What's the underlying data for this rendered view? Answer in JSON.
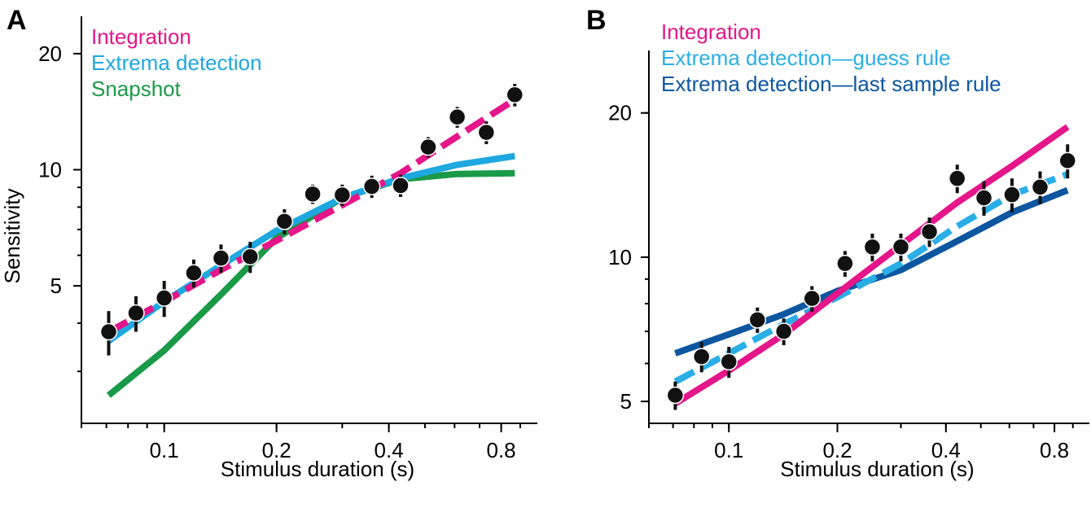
{
  "chart_data": [
    {
      "panel": "A",
      "type": "line",
      "xlabel": "Stimulus duration (s)",
      "ylabel": "Sensitivity",
      "xscale": "log",
      "yscale": "log",
      "xlim": [
        0.06,
        1.0
      ],
      "ylim": [
        2.2,
        25
      ],
      "xticks": [
        0.1,
        0.2,
        0.4,
        0.8
      ],
      "xtick_labels": [
        "0.1",
        "0.2",
        "0.4",
        "0.8"
      ],
      "yticks": [
        5,
        10,
        20
      ],
      "ytick_labels": [
        "5",
        "10",
        "20"
      ],
      "legend_position": "top-left",
      "points": {
        "x": [
          0.071,
          0.084,
          0.1,
          0.12,
          0.142,
          0.17,
          0.21,
          0.25,
          0.3,
          0.36,
          0.43,
          0.51,
          0.61,
          0.73,
          0.87
        ],
        "y": [
          3.8,
          4.25,
          4.65,
          5.4,
          5.9,
          5.95,
          7.35,
          8.65,
          8.6,
          9.05,
          9.1,
          11.45,
          13.7,
          12.5,
          15.65
        ],
        "err": [
          0.5,
          0.45,
          0.5,
          0.45,
          0.5,
          0.55,
          0.55,
          0.5,
          0.55,
          0.6,
          0.6,
          0.7,
          0.85,
          0.85,
          1.05
        ]
      },
      "series": [
        {
          "name": "Integration",
          "color": "#E5158A",
          "style": "dashed",
          "x": [
            0.071,
            0.1,
            0.142,
            0.2,
            0.3,
            0.43,
            0.61,
            0.87
          ],
          "y": [
            3.8,
            4.55,
            5.5,
            6.55,
            8.1,
            9.8,
            12.2,
            15.2
          ]
        },
        {
          "name": "Extrema detection",
          "color": "#1FA8E0",
          "style": "solid",
          "x": [
            0.071,
            0.1,
            0.142,
            0.2,
            0.3,
            0.43,
            0.61,
            0.87
          ],
          "y": [
            3.6,
            4.55,
            5.65,
            6.95,
            8.45,
            9.5,
            10.3,
            10.85
          ]
        },
        {
          "name": "Snapshot",
          "color": "#1A9A48",
          "style": "solid",
          "x": [
            0.071,
            0.1,
            0.142,
            0.2,
            0.3,
            0.43,
            0.61,
            0.87
          ],
          "y": [
            2.6,
            3.4,
            4.75,
            6.65,
            8.45,
            9.45,
            9.75,
            9.8
          ]
        }
      ]
    },
    {
      "panel": "B",
      "type": "line",
      "xlabel": "Stimulus duration (s)",
      "ylabel": "",
      "xscale": "log",
      "yscale": "log",
      "xlim": [
        0.06,
        1.0
      ],
      "ylim": [
        4.5,
        27
      ],
      "xticks": [
        0.1,
        0.2,
        0.4,
        0.8
      ],
      "xtick_labels": [
        "0.1",
        "0.2",
        "0.4",
        "0.8"
      ],
      "yticks": [
        5,
        10,
        20
      ],
      "ytick_labels": [
        "5",
        "10",
        "20"
      ],
      "legend_position": "top-left",
      "points": {
        "x": [
          0.071,
          0.084,
          0.1,
          0.12,
          0.142,
          0.17,
          0.21,
          0.25,
          0.3,
          0.36,
          0.43,
          0.51,
          0.61,
          0.73,
          0.87
        ],
        "y": [
          5.15,
          6.2,
          6.05,
          7.4,
          7.0,
          8.2,
          9.7,
          10.5,
          10.5,
          11.3,
          14.6,
          13.3,
          13.5,
          14.0,
          15.9
        ],
        "err": [
          0.35,
          0.45,
          0.45,
          0.45,
          0.45,
          0.5,
          0.6,
          0.7,
          0.7,
          0.8,
          1.0,
          1.1,
          1.1,
          1.1,
          1.3
        ]
      },
      "series": [
        {
          "name": "Integration",
          "color": "#E5158A",
          "style": "solid",
          "x": [
            0.071,
            0.1,
            0.142,
            0.2,
            0.3,
            0.43,
            0.61,
            0.87
          ],
          "y": [
            4.95,
            5.8,
            6.9,
            8.4,
            10.6,
            13.0,
            15.5,
            18.7
          ]
        },
        {
          "name": "Extrema detection—guess rule",
          "color": "#2AAEE6",
          "style": "dashed",
          "x": [
            0.071,
            0.1,
            0.142,
            0.2,
            0.3,
            0.43,
            0.61,
            0.87
          ],
          "y": [
            5.5,
            6.3,
            7.25,
            8.25,
            9.7,
            11.6,
            13.5,
            14.9
          ]
        },
        {
          "name": "Extrema detection—last sample rule",
          "color": "#0D56A0",
          "style": "solid",
          "x": [
            0.071,
            0.1,
            0.142,
            0.2,
            0.3,
            0.43,
            0.61,
            0.87
          ],
          "y": [
            6.3,
            6.9,
            7.6,
            8.5,
            9.4,
            10.8,
            12.4,
            13.8
          ]
        }
      ]
    }
  ]
}
